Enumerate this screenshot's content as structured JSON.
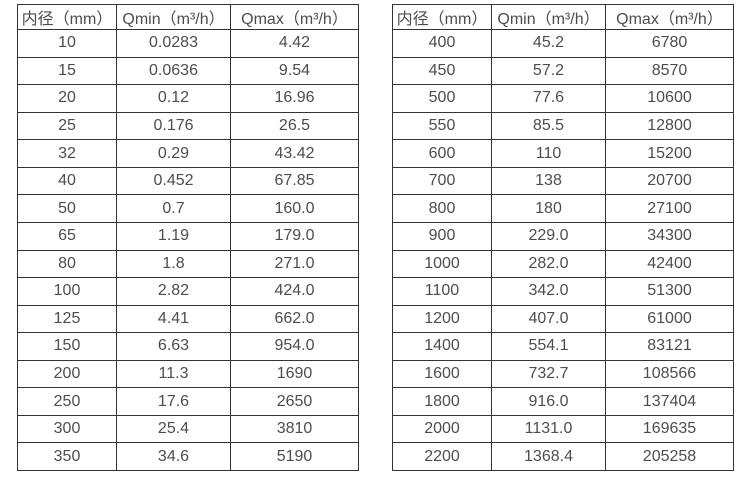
{
  "page": {
    "background": "#ffffff",
    "border_color": "#333333",
    "text_color": "#4d4d4d"
  },
  "tables": [
    {
      "id": "diameter-flow-table-small",
      "headers": [
        "内径（mm）",
        "Qmin（m³/h）",
        "Qmax（m³/h）"
      ],
      "rows": [
        [
          "10",
          "0.0283",
          "4.42"
        ],
        [
          "15",
          "0.0636",
          "9.54"
        ],
        [
          "20",
          "0.12",
          "16.96"
        ],
        [
          "25",
          "0.176",
          "26.5"
        ],
        [
          "32",
          "0.29",
          "43.42"
        ],
        [
          "40",
          "0.452",
          "67.85"
        ],
        [
          "50",
          "0.7",
          "160.0"
        ],
        [
          "65",
          "1.19",
          "179.0"
        ],
        [
          "80",
          "1.8",
          "271.0"
        ],
        [
          "100",
          "2.82",
          "424.0"
        ],
        [
          "125",
          "4.41",
          "662.0"
        ],
        [
          "150",
          "6.63",
          "954.0"
        ],
        [
          "200",
          "11.3",
          "1690"
        ],
        [
          "250",
          "17.6",
          "2650"
        ],
        [
          "300",
          "25.4",
          "3810"
        ],
        [
          "350",
          "34.6",
          "5190"
        ]
      ]
    },
    {
      "id": "diameter-flow-table-large",
      "headers": [
        "内径（mm）",
        "Qmin（m³/h）",
        "Qmax（m³/h）"
      ],
      "rows": [
        [
          "400",
          "45.2",
          "6780"
        ],
        [
          "450",
          "57.2",
          "8570"
        ],
        [
          "500",
          "77.6",
          "10600"
        ],
        [
          "550",
          "85.5",
          "12800"
        ],
        [
          "600",
          "110",
          "15200"
        ],
        [
          "700",
          "138",
          "20700"
        ],
        [
          "800",
          "180",
          "27100"
        ],
        [
          "900",
          "229.0",
          "34300"
        ],
        [
          "1000",
          "282.0",
          "42400"
        ],
        [
          "1100",
          "342.0",
          "51300"
        ],
        [
          "1200",
          "407.0",
          "61000"
        ],
        [
          "1400",
          "554.1",
          "83121"
        ],
        [
          "1600",
          "732.7",
          "108566"
        ],
        [
          "1800",
          "916.0",
          "137404"
        ],
        [
          "2000",
          "1131.0",
          "169635"
        ],
        [
          "2200",
          "1368.4",
          "205258"
        ]
      ]
    }
  ]
}
